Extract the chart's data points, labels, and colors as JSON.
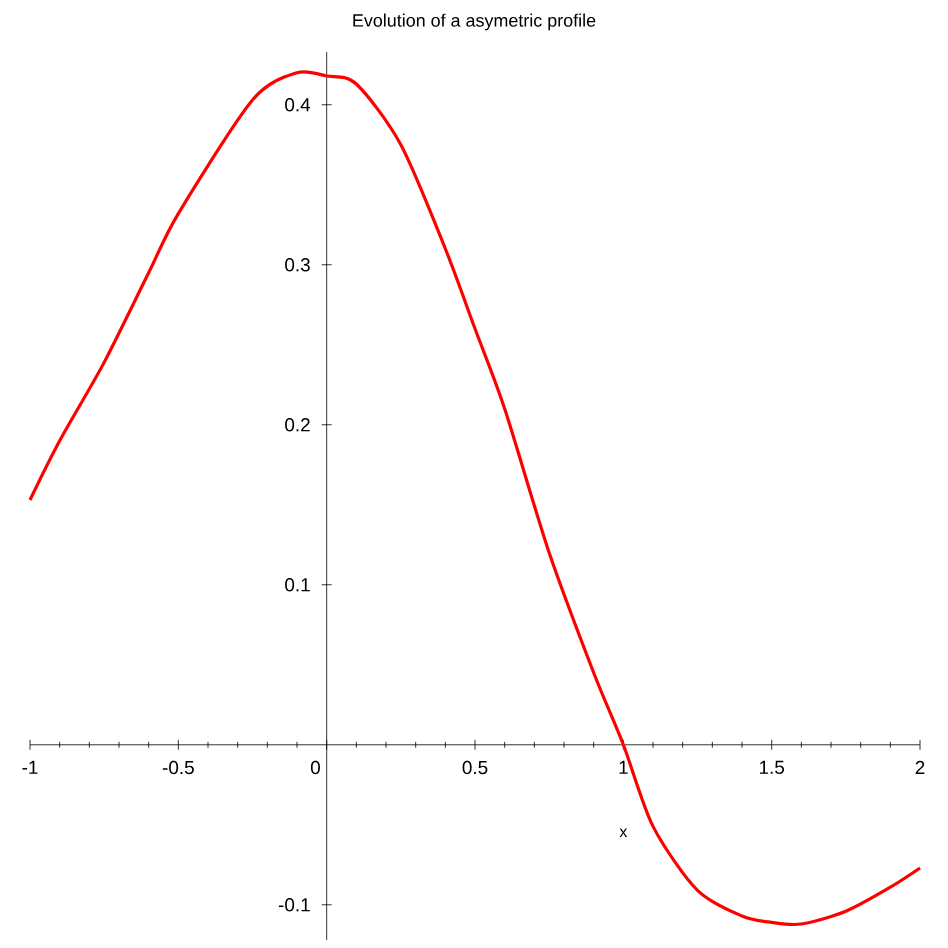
{
  "chart_data": {
    "type": "line",
    "title": "Evolution of a asymetric profile",
    "xlabel": "x",
    "x": [
      -1,
      -0.9,
      -0.75,
      -0.6,
      -0.5,
      -0.25,
      -0.1,
      0,
      0.1,
      0.25,
      0.4,
      0.5,
      0.6,
      0.75,
      0.9,
      1,
      1.1,
      1.25,
      1.4,
      1.5,
      1.6,
      1.75,
      1.9,
      2
    ],
    "series": [
      {
        "color": "#ff0000",
        "values": [
          0.153,
          0.19,
          0.239,
          0.295,
          0.332,
          0.403,
          0.42,
          0.418,
          0.413,
          0.375,
          0.31,
          0.26,
          0.21,
          0.12,
          0.045,
          0,
          -0.051,
          -0.091,
          -0.107,
          -0.111,
          -0.112,
          -0.104,
          -0.089,
          -0.077
        ]
      }
    ],
    "xlim": [
      -1,
      2
    ],
    "ylim": [
      -0.122,
      0.433
    ],
    "xticks": [
      -1,
      -0.5,
      0,
      0.5,
      1,
      1.5,
      2
    ],
    "yticks": [
      -0.1,
      0.1,
      0.2,
      0.3,
      0.4
    ],
    "grid": false,
    "marker": "none",
    "line_style": "solid"
  }
}
